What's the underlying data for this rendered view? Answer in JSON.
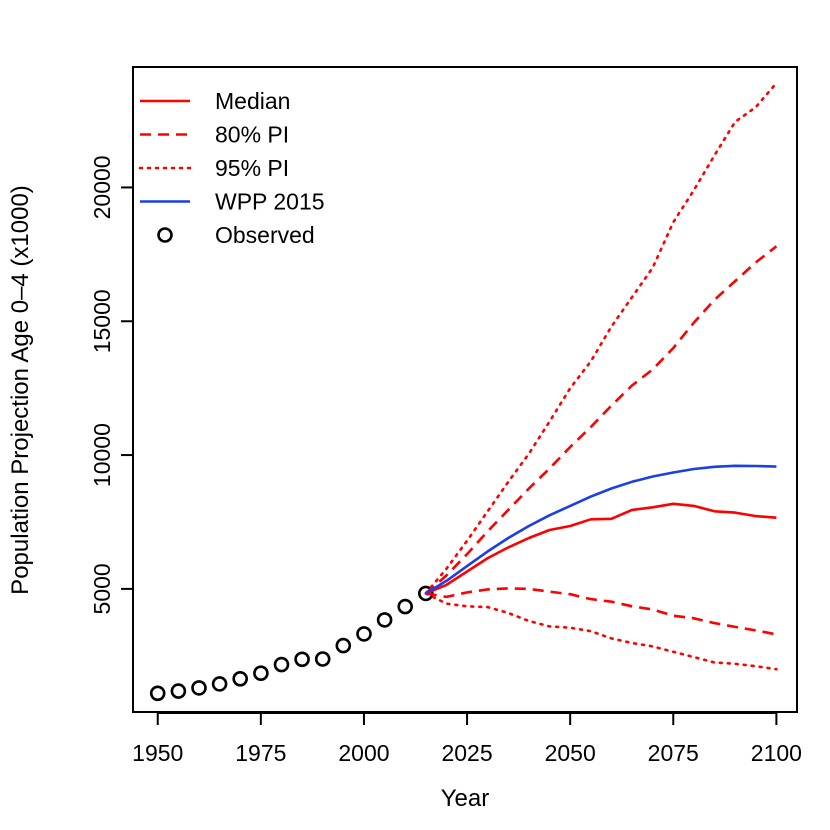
{
  "chart_data": {
    "type": "line",
    "title": "",
    "xlabel": "Year",
    "ylabel": "Population Projection Age 0–4 (x1000)",
    "xlim": [
      1944,
      2105
    ],
    "ylim": [
      400,
      24500
    ],
    "x_ticks": [
      1950,
      1975,
      2000,
      2025,
      2050,
      2075,
      2100
    ],
    "y_ticks": [
      5000,
      10000,
      15000,
      20000
    ],
    "x_tick_labels": [
      "1950",
      "1975",
      "2000",
      "2025",
      "2050",
      "2075",
      "2100"
    ],
    "y_tick_labels": [
      "5000",
      "10000",
      "15000",
      "20000"
    ],
    "legend_position": "top-left",
    "legend": [
      {
        "label": "Median",
        "style": "solid",
        "color": "#ff0000",
        "kind": "line"
      },
      {
        "label": "80% PI",
        "style": "dashed",
        "color": "#ff0000",
        "kind": "line"
      },
      {
        "label": "95% PI",
        "style": "dotted",
        "color": "#ff0000",
        "kind": "line"
      },
      {
        "label": "WPP 2015",
        "style": "solid",
        "color": "#1a3fe6",
        "kind": "line"
      },
      {
        "label": "Observed",
        "style": "circle",
        "color": "#000000",
        "kind": "point"
      }
    ],
    "series": [
      {
        "name": "Observed",
        "style": "circle",
        "color": "#000000",
        "x": [
          1950,
          1955,
          1960,
          1965,
          1970,
          1975,
          1980,
          1985,
          1990,
          1995,
          2000,
          2005,
          2010,
          2015
        ],
        "y": [
          1100,
          1180,
          1300,
          1450,
          1640,
          1850,
          2170,
          2370,
          2380,
          2880,
          3320,
          3840,
          4340,
          4830
        ]
      },
      {
        "name": "Median",
        "style": "solid",
        "color": "#ff0000",
        "x": [
          2015,
          2020,
          2025,
          2030,
          2035,
          2040,
          2045,
          2050,
          2055,
          2060,
          2065,
          2070,
          2075,
          2080,
          2085,
          2090,
          2095,
          2100
        ],
        "y": [
          4830,
          5150,
          5650,
          6150,
          6550,
          6900,
          7200,
          7350,
          7600,
          7620,
          7950,
          8050,
          8180,
          8100,
          7900,
          7850,
          7720,
          7660
        ]
      },
      {
        "name": "80% PI upper",
        "style": "dashed",
        "color": "#ff0000",
        "x": [
          2015,
          2020,
          2025,
          2030,
          2035,
          2040,
          2045,
          2050,
          2055,
          2060,
          2065,
          2070,
          2075,
          2080,
          2085,
          2090,
          2095,
          2100
        ],
        "y": [
          4830,
          5500,
          6300,
          7150,
          7950,
          8750,
          9500,
          10300,
          11050,
          11850,
          12600,
          13200,
          14000,
          14950,
          15800,
          16500,
          17200,
          17800
        ]
      },
      {
        "name": "80% PI lower",
        "style": "dashed",
        "color": "#ff0000",
        "x": [
          2015,
          2020,
          2025,
          2030,
          2035,
          2040,
          2045,
          2050,
          2055,
          2060,
          2065,
          2070,
          2075,
          2080,
          2085,
          2090,
          2095,
          2100
        ],
        "y": [
          4830,
          4700,
          4870,
          4980,
          5020,
          5000,
          4900,
          4800,
          4620,
          4520,
          4350,
          4230,
          4000,
          3900,
          3720,
          3580,
          3450,
          3300
        ]
      },
      {
        "name": "95% PI upper",
        "style": "dotted",
        "color": "#ff0000",
        "x": [
          2015,
          2020,
          2025,
          2030,
          2035,
          2040,
          2045,
          2050,
          2055,
          2060,
          2065,
          2070,
          2075,
          2080,
          2085,
          2090,
          2095,
          2100
        ],
        "y": [
          4830,
          5750,
          6800,
          7900,
          9000,
          10050,
          11250,
          12500,
          13500,
          14800,
          15900,
          17000,
          18700,
          19900,
          21200,
          22450,
          23000,
          23900
        ]
      },
      {
        "name": "95% PI lower",
        "style": "dotted",
        "color": "#ff0000",
        "x": [
          2015,
          2020,
          2025,
          2030,
          2035,
          2040,
          2045,
          2050,
          2055,
          2060,
          2065,
          2070,
          2075,
          2080,
          2085,
          2090,
          2095,
          2100
        ],
        "y": [
          4830,
          4450,
          4350,
          4320,
          4100,
          3800,
          3600,
          3550,
          3420,
          3150,
          2980,
          2850,
          2650,
          2450,
          2250,
          2200,
          2110,
          2000
        ]
      },
      {
        "name": "WPP 2015",
        "style": "solid",
        "color": "#1a3fe6",
        "x": [
          2015,
          2020,
          2025,
          2030,
          2035,
          2040,
          2045,
          2050,
          2055,
          2060,
          2065,
          2070,
          2075,
          2080,
          2085,
          2090,
          2095,
          2100
        ],
        "y": [
          4830,
          5300,
          5850,
          6400,
          6900,
          7350,
          7750,
          8100,
          8450,
          8750,
          9000,
          9200,
          9350,
          9480,
          9560,
          9600,
          9590,
          9570
        ]
      }
    ]
  }
}
